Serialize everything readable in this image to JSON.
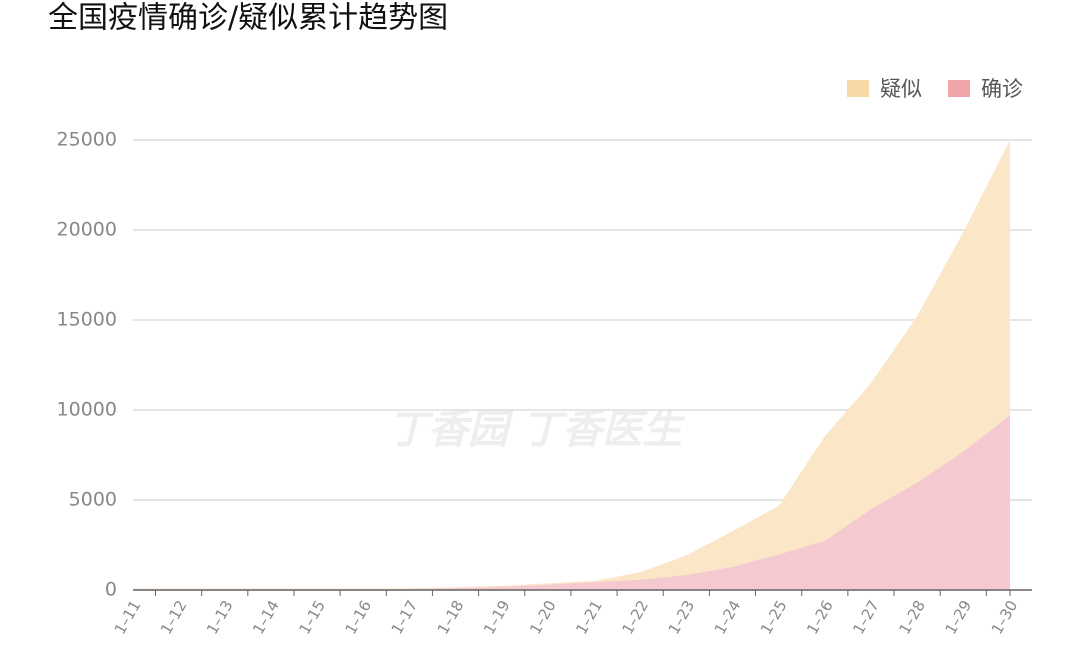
{
  "chart_data": {
    "type": "stacked-area",
    "title": "全国疫情确诊/疑似累计趋势图",
    "watermark": "丁香园  丁香医生",
    "categories": [
      "1–11",
      "1–12",
      "1–13",
      "1–14",
      "1–15",
      "1–16",
      "1–17",
      "1–18",
      "1–19",
      "1–20",
      "1–21",
      "1–22",
      "1–23",
      "1–24",
      "1–25",
      "1–26",
      "1–27",
      "1–28",
      "1–29",
      "1–30"
    ],
    "series": [
      {
        "name": "确诊",
        "color": "#f4c9d0",
        "legend_color": "#eea6ab",
        "values": [
          41,
          41,
          41,
          41,
          41,
          41,
          62,
          121,
          198,
          291,
          440,
          571,
          830,
          1287,
          1975,
          2744,
          4515,
          5974,
          7711,
          9692
        ]
      },
      {
        "name": "疑似",
        "color": "#fce6c8",
        "legend_color": "#f7d9a8",
        "values": [
          0,
          0,
          0,
          0,
          0,
          0,
          0,
          0,
          0,
          54,
          37,
          393,
          1072,
          1965,
          2684,
          5794,
          6973,
          9239,
          12167,
          15238
        ]
      }
    ],
    "ylim": [
      0,
      25000
    ],
    "yticks": [
      0,
      5000,
      10000,
      15000,
      20000,
      25000
    ],
    "grid": true
  }
}
